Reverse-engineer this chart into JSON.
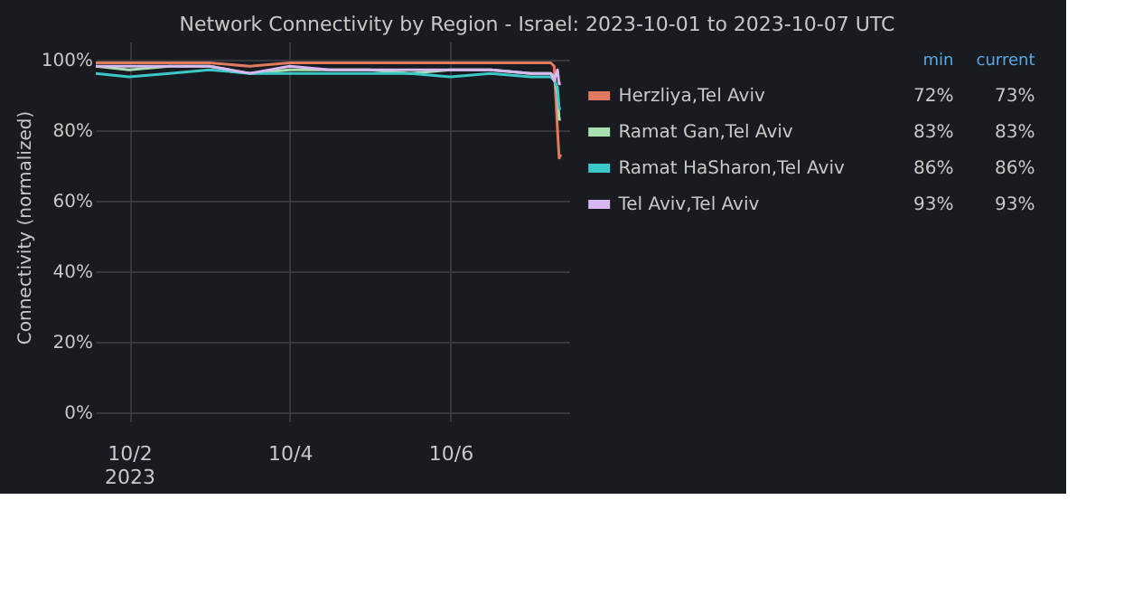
{
  "chart_data": {
    "type": "line",
    "title": "Network Connectivity by Region - Israel: 2023-10-01 to 2023-10-07 UTC",
    "ylabel": "Connectivity (normalized)",
    "x": [
      "2023-10-01T14:00",
      "2023-10-02T00:00",
      "2023-10-02T12:00",
      "2023-10-03T00:00",
      "2023-10-03T12:00",
      "2023-10-04T00:00",
      "2023-10-04T12:00",
      "2023-10-05T00:00",
      "2023-10-05T12:00",
      "2023-10-06T00:00",
      "2023-10-06T12:00",
      "2023-10-07T00:00",
      "2023-10-07T06:00",
      "2023-10-07T07:00",
      "2023-10-07T08:00",
      "2023-10-07T08:30",
      "2023-10-07T09:00"
    ],
    "series": [
      {
        "name": "Herzliya,Tel Aviv",
        "color": "#e07b60",
        "values": [
          99,
          99,
          99,
          99,
          98,
          99,
          99,
          99,
          99,
          99,
          99,
          99,
          99,
          98,
          80,
          72,
          73
        ]
      },
      {
        "name": "Ramat Gan,Tel Aviv",
        "color": "#a8e0b0",
        "values": [
          98,
          97,
          98,
          98,
          96,
          97,
          97,
          97,
          96,
          97,
          97,
          96,
          96,
          95,
          90,
          83,
          83
        ]
      },
      {
        "name": "Ramat HaSharon,Tel Aviv",
        "color": "#3cc8c8",
        "values": [
          96,
          95,
          96,
          97,
          96,
          96,
          96,
          96,
          96,
          95,
          96,
          95,
          95,
          94,
          92,
          86,
          86
        ]
      },
      {
        "name": "Tel Aviv,Tel Aviv",
        "color": "#d8b8f0",
        "values": [
          98,
          98,
          98,
          98,
          96,
          98,
          97,
          97,
          97,
          97,
          97,
          96,
          96,
          94,
          97,
          93,
          93
        ]
      }
    ],
    "xlim": [
      "2023-10-01T14:00",
      "2023-10-07T11:30"
    ],
    "xticks": [
      {
        "value": "2023-10-02",
        "label": "10/2\n2023"
      },
      {
        "value": "2023-10-04",
        "label": "10/4"
      },
      {
        "value": "2023-10-06",
        "label": "10/6"
      }
    ],
    "ylim": [
      0,
      105
    ],
    "yticks": [
      {
        "value": 0,
        "label": "0%"
      },
      {
        "value": 20,
        "label": "20%"
      },
      {
        "value": 40,
        "label": "40%"
      },
      {
        "value": 60,
        "label": "60%"
      },
      {
        "value": 80,
        "label": "80%"
      },
      {
        "value": 100,
        "label": "100%"
      }
    ],
    "grid": true,
    "legend": "right",
    "line_style": "solid",
    "marker": "none",
    "annotations": [
      "min",
      "current",
      "72%",
      "73%",
      "83%",
      "83%",
      "86%",
      "86%",
      "93%",
      "93%"
    ]
  }
}
